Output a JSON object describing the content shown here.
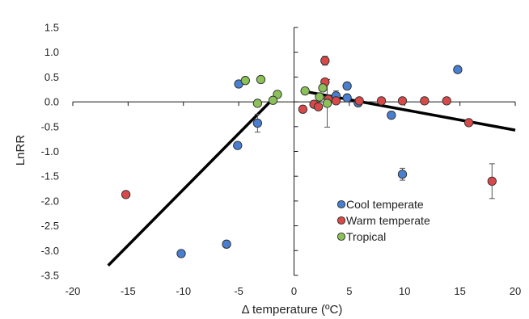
{
  "chart_data": {
    "type": "scatter",
    "title": "",
    "xlabel": "Δ temperature (ºC)",
    "ylabel": "LnRR",
    "xlim": [
      -20,
      20
    ],
    "ylim": [
      -3.5,
      1.5
    ],
    "xticks": [
      -20,
      -15,
      -10,
      -5,
      0,
      5,
      10,
      15,
      20
    ],
    "yticks": [
      1.5,
      1.0,
      0.5,
      0.0,
      -0.5,
      -1.0,
      -1.5,
      -2.0,
      -2.5,
      -3.0,
      -3.5
    ],
    "xtick_labels": [
      "-20",
      "-15",
      "-10",
      "-5",
      "0",
      "5",
      "10",
      "15",
      "20"
    ],
    "ytick_labels": [
      "1.5",
      "1.0",
      "0.5",
      "0.0",
      "-0.5",
      "-1.0",
      "-1.5",
      "-2.0",
      "-2.5",
      "-3.0",
      "-3.5"
    ],
    "grid": false,
    "legend_position": "bottom-right",
    "colors": {
      "Cool temperate": "#4a7fcf",
      "Warm temperate": "#d84a4a",
      "Tropical": "#8cc15a",
      "edge": "#2b2b2b",
      "trendline": "#000000"
    },
    "series": [
      {
        "name": "Cool temperate",
        "points": [
          {
            "x": -10.2,
            "y": -3.06
          },
          {
            "x": -6.1,
            "y": -2.87
          },
          {
            "x": -5.1,
            "y": -0.88
          },
          {
            "x": -5.0,
            "y": 0.36
          },
          {
            "x": -3.3,
            "y": -0.43,
            "err": 0.18
          },
          {
            "x": 3.8,
            "y": 0.12,
            "err": 0.1
          },
          {
            "x": 4.8,
            "y": 0.32
          },
          {
            "x": 4.8,
            "y": 0.08
          },
          {
            "x": 5.8,
            "y": -0.02
          },
          {
            "x": 8.8,
            "y": -0.27
          },
          {
            "x": 9.8,
            "y": -1.46,
            "err": 0.12
          },
          {
            "x": 14.8,
            "y": 0.65
          }
        ]
      },
      {
        "name": "Warm temperate",
        "points": [
          {
            "x": -15.2,
            "y": -1.87
          },
          {
            "x": 0.8,
            "y": -0.15,
            "err": 0.07
          },
          {
            "x": 1.8,
            "y": -0.05
          },
          {
            "x": 2.2,
            "y": -0.1
          },
          {
            "x": 2.8,
            "y": 0.83,
            "err": 0.09
          },
          {
            "x": 2.8,
            "y": 0.4
          },
          {
            "x": 3.1,
            "y": 0.05
          },
          {
            "x": 3.8,
            "y": 0.02
          },
          {
            "x": 5.9,
            "y": 0.02
          },
          {
            "x": 7.9,
            "y": 0.02
          },
          {
            "x": 9.8,
            "y": 0.02
          },
          {
            "x": 11.8,
            "y": 0.02
          },
          {
            "x": 13.8,
            "y": 0.02
          },
          {
            "x": 15.8,
            "y": -0.42
          },
          {
            "x": 17.9,
            "y": -1.6,
            "err": 0.35
          }
        ]
      },
      {
        "name": "Tropical",
        "points": [
          {
            "x": -4.4,
            "y": 0.43
          },
          {
            "x": -3.0,
            "y": 0.45
          },
          {
            "x": -3.3,
            "y": -0.03
          },
          {
            "x": -1.5,
            "y": 0.15
          },
          {
            "x": -1.9,
            "y": 0.03
          },
          {
            "x": 1.0,
            "y": 0.22
          },
          {
            "x": 2.3,
            "y": 0.1
          },
          {
            "x": 2.6,
            "y": 0.28
          },
          {
            "x": 3.0,
            "y": -0.03,
            "err": 0.48
          }
        ]
      }
    ],
    "trendlines": [
      {
        "x": [
          -16.8,
          -1.5
        ],
        "y": [
          -3.3,
          0.15
        ]
      },
      {
        "x": [
          1.2,
          20.0
        ],
        "y": [
          0.2,
          -0.57
        ]
      }
    ]
  }
}
